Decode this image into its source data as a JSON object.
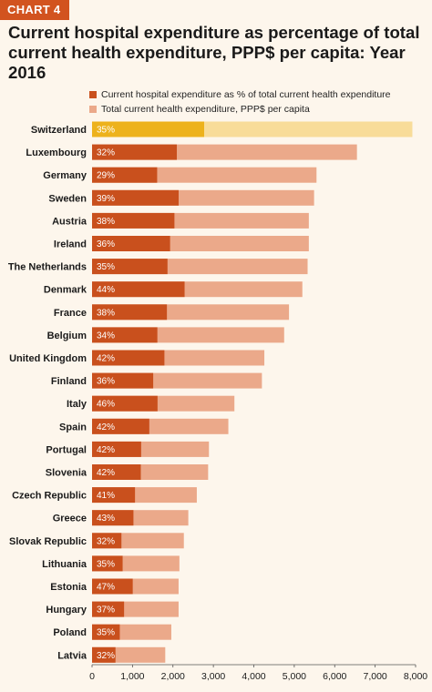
{
  "header": {
    "tag": "CHART 4",
    "title": "Current hospital expenditure as percentage of total current health expenditure, PPP$ per capita: Year 2016"
  },
  "colors": {
    "hospital": "#c9501d",
    "total": "#eba98a",
    "highlight_hospital": "#edb21c",
    "highlight_total": "#f8dc99",
    "tag_bg": "#d2531f"
  },
  "chart_data": {
    "type": "bar",
    "orientation": "horizontal",
    "title": "Current hospital expenditure as percentage of total current health expenditure, PPP$ per capita: Year 2016",
    "categories": [
      "Switzerland",
      "Luxembourg",
      "Germany",
      "Sweden",
      "Austria",
      "Ireland",
      "The Netherlands",
      "Denmark",
      "France",
      "Belgium",
      "United Kingdom",
      "Finland",
      "Italy",
      "Spain",
      "Portugal",
      "Slovenia",
      "Czech Republic",
      "Greece",
      "Slovak Republic",
      "Lithuania",
      "Estonia",
      "Hungary",
      "Poland",
      "Latvia"
    ],
    "highlight": "Switzerland",
    "series": [
      {
        "name": "Total current health expenditure, PPP$ per capita",
        "values": [
          7920,
          6550,
          5550,
          5490,
          5360,
          5360,
          5330,
          5200,
          4870,
          4750,
          4260,
          4200,
          3520,
          3370,
          2890,
          2870,
          2590,
          2380,
          2270,
          2160,
          2140,
          2140,
          1960,
          1810
        ]
      },
      {
        "name": "Current hospital expenditure as % of total current health expenditure",
        "values": [
          35,
          32,
          29,
          39,
          38,
          36,
          35,
          44,
          38,
          34,
          42,
          36,
          46,
          42,
          42,
          42,
          41,
          43,
          32,
          35,
          47,
          37,
          35,
          32
        ],
        "labels": [
          "35%",
          "32%",
          "29%",
          "39%",
          "38%",
          "36%",
          "35%",
          "44%",
          "38%",
          "34%",
          "42%",
          "36%",
          "46%",
          "42%",
          "42%",
          "42%",
          "41%",
          "43%",
          "32%",
          "35%",
          "47%",
          "37%",
          "35%",
          "32%"
        ]
      }
    ],
    "xlim": [
      0,
      8000
    ],
    "xticks": [
      0,
      1000,
      2000,
      3000,
      4000,
      5000,
      6000,
      7000,
      8000
    ],
    "xtick_labels": [
      "0",
      "1,000",
      "2,000",
      "3,000",
      "4,000",
      "5,000",
      "6,000",
      "7,000",
      "8,000"
    ],
    "xlabel": "",
    "ylabel": "",
    "grid": false,
    "legend_position": "top"
  }
}
